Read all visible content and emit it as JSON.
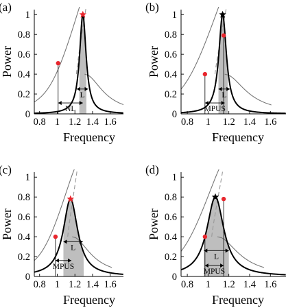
{
  "chart_data": [
    {
      "type": "line",
      "panel_label": "(a)",
      "xlabel": "Frequency",
      "ylabel": "Power",
      "xlim": [
        0.74,
        1.75
      ],
      "ylim": [
        0,
        1.05
      ],
      "xticks": [
        "0.8",
        "1",
        "1.2",
        "1.4",
        "1.6"
      ],
      "yticks": [
        "0",
        "0.2",
        "0.4",
        "0.6",
        "0.8",
        "1"
      ],
      "resonance": {
        "center": 1.29,
        "peak": 1.0,
        "width": 0.045,
        "shift": 0.52
      },
      "peak_marker": {
        "x": 1.29,
        "y": 1.0,
        "color": "#e8262d",
        "shape": "star"
      },
      "point_marker": {
        "x": 1.01,
        "y": 0.51,
        "color": "#e8262d"
      },
      "band": [
        1.25,
        1.33
      ],
      "arrows": [
        {
          "label": "L",
          "from": 1.22,
          "to": 1.35,
          "y": 0.25
        },
        {
          "label": "NL",
          "from": 1.01,
          "to": 1.29,
          "y": 0.11
        }
      ]
    },
    {
      "type": "line",
      "panel_label": "(b)",
      "xlabel": "Frequency",
      "ylabel": "Power",
      "xlim": [
        0.74,
        1.75
      ],
      "ylim": [
        0,
        1.05
      ],
      "xticks": [
        "0.8",
        "1",
        "1.2",
        "1.4",
        "1.6"
      ],
      "yticks": [
        "0",
        "0.2",
        "0.4",
        "0.6",
        "0.8",
        "1"
      ],
      "resonance": {
        "center": 1.14,
        "peak": 1.0,
        "width": 0.045,
        "shift": 0.52
      },
      "peak_marker": {
        "x": 1.14,
        "y": 1.0,
        "color": "#000000",
        "shape": "star"
      },
      "point_marker": {
        "x": 1.15,
        "y": 0.79,
        "color": "#e8262d"
      },
      "point_marker_2": {
        "x": 0.97,
        "y": 0.4,
        "color": "#e8262d"
      },
      "band": [
        1.1,
        1.19
      ],
      "arrows": [
        {
          "label": "L",
          "from": 1.1,
          "to": 1.21,
          "y": 0.25
        },
        {
          "label": "MPUS",
          "from": 0.97,
          "to": 1.16,
          "y": 0.11
        }
      ]
    },
    {
      "type": "line",
      "panel_label": "(c)",
      "xlabel": "Frequency",
      "ylabel": "Power",
      "xlim": [
        0.74,
        1.75
      ],
      "ylim": [
        0,
        1.05
      ],
      "xticks": [
        "0.8",
        "1",
        "1.2",
        "1.4",
        "1.6"
      ],
      "yticks": [
        "0",
        "0.2",
        "0.4",
        "0.6",
        "0.8",
        "1"
      ],
      "resonance": {
        "center": 1.15,
        "peak": 0.78,
        "width": 0.1,
        "shift": 0.52
      },
      "peak_marker": {
        "x": 1.15,
        "y": 0.78,
        "color": "#e8262d",
        "shape": "star"
      },
      "point_marker": {
        "x": 0.98,
        "y": 0.4,
        "color": "#e8262d"
      },
      "band": [
        1.07,
        1.3
      ],
      "arrows": [
        {
          "label": "L",
          "from": 1.07,
          "to": 1.29,
          "y": 0.35
        },
        {
          "label": "MPUS",
          "from": 0.98,
          "to": 1.16,
          "y": 0.16
        }
      ]
    },
    {
      "type": "line",
      "panel_label": "(d)",
      "xlabel": "Frequency",
      "ylabel": "Power",
      "xlim": [
        0.74,
        1.75
      ],
      "ylim": [
        0,
        1.05
      ],
      "xticks": [
        "0.8",
        "1",
        "1.2",
        "1.4",
        "1.6"
      ],
      "yticks": [
        "0",
        "0.2",
        "0.4",
        "0.6",
        "0.8",
        "1"
      ],
      "resonance": {
        "center": 1.07,
        "peak": 0.8,
        "width": 0.1,
        "shift": 0.52
      },
      "peak_marker": {
        "x": 1.07,
        "y": 0.8,
        "color": "#000000",
        "shape": "star"
      },
      "point_marker": {
        "x": 1.15,
        "y": 0.78,
        "color": "#e8262d"
      },
      "point_marker_2": {
        "x": 0.97,
        "y": 0.4,
        "color": "#e8262d"
      },
      "band": [
        0.96,
        1.2
      ],
      "arrows": [
        {
          "label": "L",
          "from": 0.96,
          "to": 1.2,
          "y": 0.26
        },
        {
          "label": "MPUS",
          "from": 0.97,
          "to": 1.15,
          "y": 0.11
        }
      ]
    }
  ]
}
